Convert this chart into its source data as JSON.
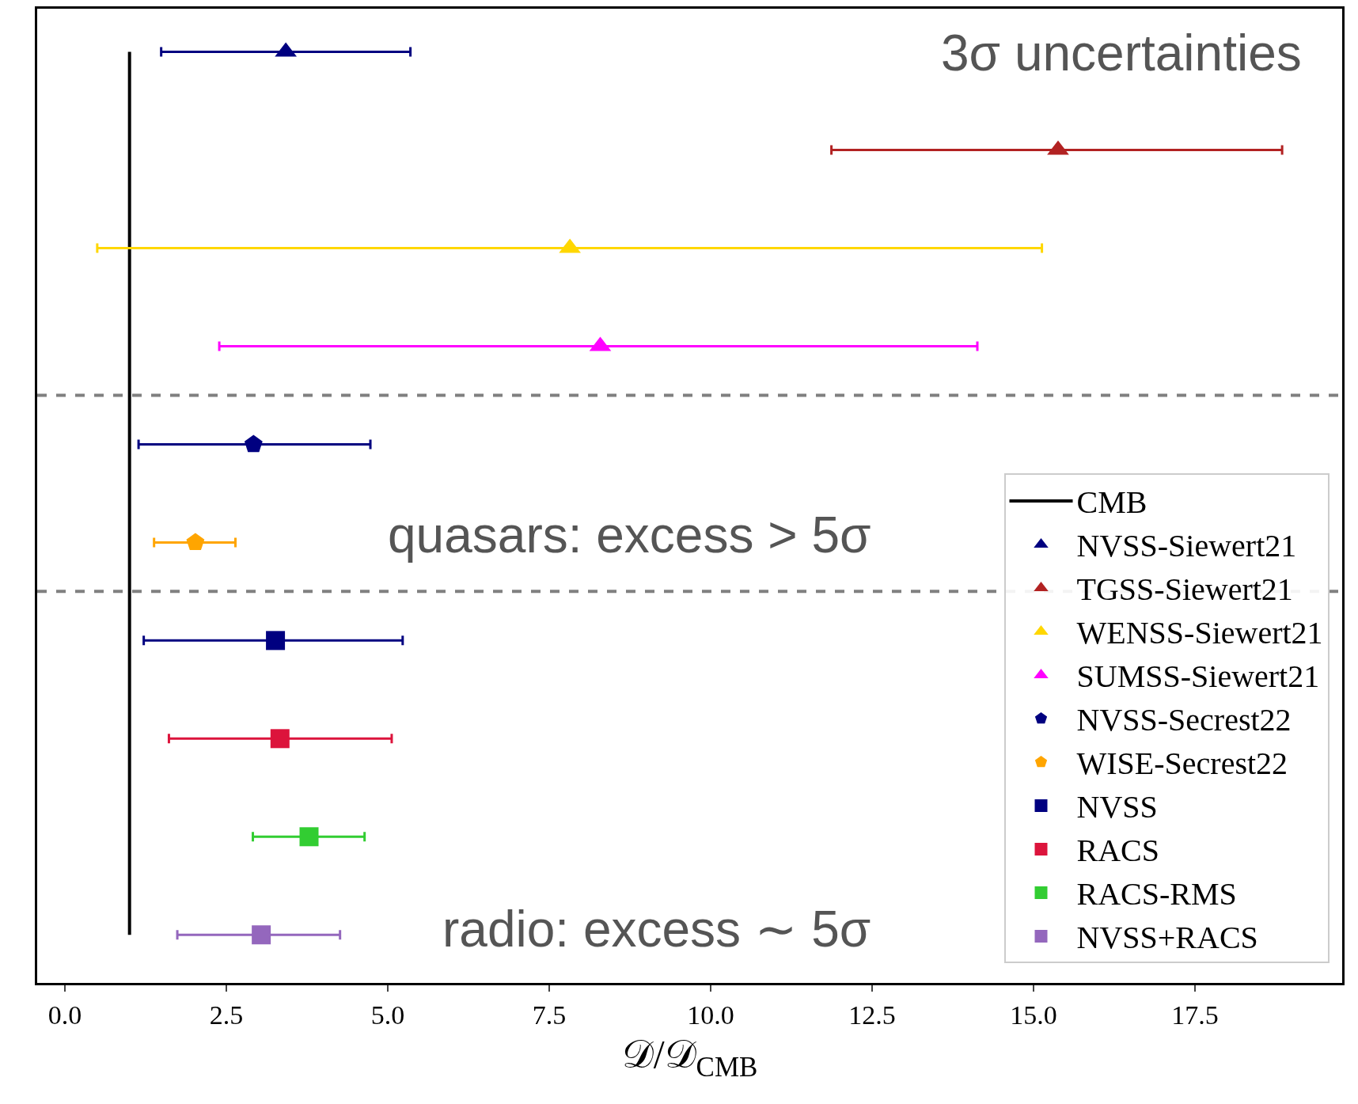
{
  "chart_data": {
    "type": "scatter",
    "orientation": "horizontal",
    "xlabel": "𝒟/𝒟$_{CMB}$",
    "categories": [
      null,
      null,
      null,
      null,
      null,
      null,
      null,
      null,
      null,
      null
    ],
    "series": [
      {
        "name": "CMB",
        "type": "line",
        "color": "#000000",
        "marker": "none",
        "values": [
          1,
          1,
          1,
          1,
          1,
          1,
          1,
          1,
          1,
          1
        ]
      },
      {
        "name": "NVSS-Siewert21",
        "color": "#000080",
        "marker": "triangle",
        "values": [
          3.42,
          null,
          null,
          null,
          null,
          null,
          null,
          null,
          null,
          null
        ],
        "errors": [
          [
            1.49,
            5.35
          ],
          null,
          null,
          null,
          null,
          null,
          null,
          null,
          null,
          null
        ]
      },
      {
        "name": "TGSS-Siewert21",
        "color": "#b22222",
        "marker": "triangle",
        "values": [
          null,
          15.38,
          null,
          null,
          null,
          null,
          null,
          null,
          null,
          null
        ],
        "errors": [
          null,
          [
            11.87,
            18.85
          ],
          null,
          null,
          null,
          null,
          null,
          null,
          null,
          null
        ]
      },
      {
        "name": "WENSS-Siewert21",
        "color": "#ffd700",
        "marker": "triangle",
        "values": [
          null,
          null,
          7.82,
          null,
          null,
          null,
          null,
          null,
          null,
          null
        ],
        "errors": [
          null,
          null,
          [
            0.5,
            15.13
          ],
          null,
          null,
          null,
          null,
          null,
          null,
          null
        ]
      },
      {
        "name": "SUMSS-Siewert21",
        "color": "#ff00ff",
        "marker": "triangle",
        "values": [
          null,
          null,
          null,
          8.29,
          null,
          null,
          null,
          null,
          null,
          null
        ],
        "errors": [
          null,
          null,
          null,
          [
            2.39,
            14.13
          ],
          null,
          null,
          null,
          null,
          null,
          null
        ]
      },
      {
        "name": "NVSS-Secrest22",
        "color": "#000080",
        "marker": "circle",
        "values": [
          null,
          null,
          null,
          null,
          2.92,
          null,
          null,
          null,
          null,
          null
        ],
        "errors": [
          null,
          null,
          null,
          null,
          [
            1.14,
            4.73
          ],
          null,
          null,
          null,
          null,
          null
        ]
      },
      {
        "name": "WISE-Secrest22",
        "color": "#ffa500",
        "marker": "circle",
        "values": [
          null,
          null,
          null,
          null,
          null,
          2.02,
          null,
          null,
          null,
          null
        ],
        "errors": [
          null,
          null,
          null,
          null,
          null,
          [
            1.38,
            2.64
          ],
          null,
          null,
          null,
          null
        ]
      },
      {
        "name": "NVSS",
        "color": "#000080",
        "marker": "square",
        "values": [
          null,
          null,
          null,
          null,
          null,
          null,
          3.26,
          null,
          null,
          null
        ],
        "errors": [
          null,
          null,
          null,
          null,
          null,
          null,
          [
            1.22,
            5.23
          ],
          null,
          null,
          null
        ]
      },
      {
        "name": "RACS",
        "color": "#dc143c",
        "marker": "square",
        "values": [
          null,
          null,
          null,
          null,
          null,
          null,
          null,
          3.33,
          null,
          null
        ],
        "errors": [
          null,
          null,
          null,
          null,
          null,
          null,
          null,
          [
            1.61,
            5.06
          ],
          null,
          null
        ]
      },
      {
        "name": "RACS-RMS",
        "color": "#32cd32",
        "marker": "square",
        "values": [
          null,
          null,
          null,
          null,
          null,
          null,
          null,
          null,
          3.78,
          null
        ],
        "errors": [
          null,
          null,
          null,
          null,
          null,
          null,
          null,
          null,
          [
            2.91,
            4.64
          ],
          null
        ]
      },
      {
        "name": "NVSS+RACS",
        "color": "#9467bd",
        "marker": "square",
        "values": [
          null,
          null,
          null,
          null,
          null,
          null,
          null,
          null,
          null,
          3.04
        ],
        "errors": [
          null,
          null,
          null,
          null,
          null,
          null,
          null,
          null,
          null,
          [
            1.74,
            4.26
          ]
        ]
      }
    ],
    "xlim": [
      -0.43,
      19.78
    ],
    "xticks": [
      {
        "value": 0,
        "label": "0.0"
      },
      {
        "value": 2.5,
        "label": "2.5"
      },
      {
        "value": 5,
        "label": "5.0"
      },
      {
        "value": 7.5,
        "label": "7.5"
      },
      {
        "value": 10,
        "label": "10.0"
      },
      {
        "value": 12.5,
        "label": "12.5"
      },
      {
        "value": 15,
        "label": "15.0"
      },
      {
        "value": 17.5,
        "label": "17.5"
      }
    ],
    "annotations": [
      "3σ uncertainties",
      "quasars: excess > 5σ",
      "radio: excess ∼ 5σ"
    ],
    "tick_labels": "x",
    "grid": false,
    "legend": "bottom right"
  }
}
